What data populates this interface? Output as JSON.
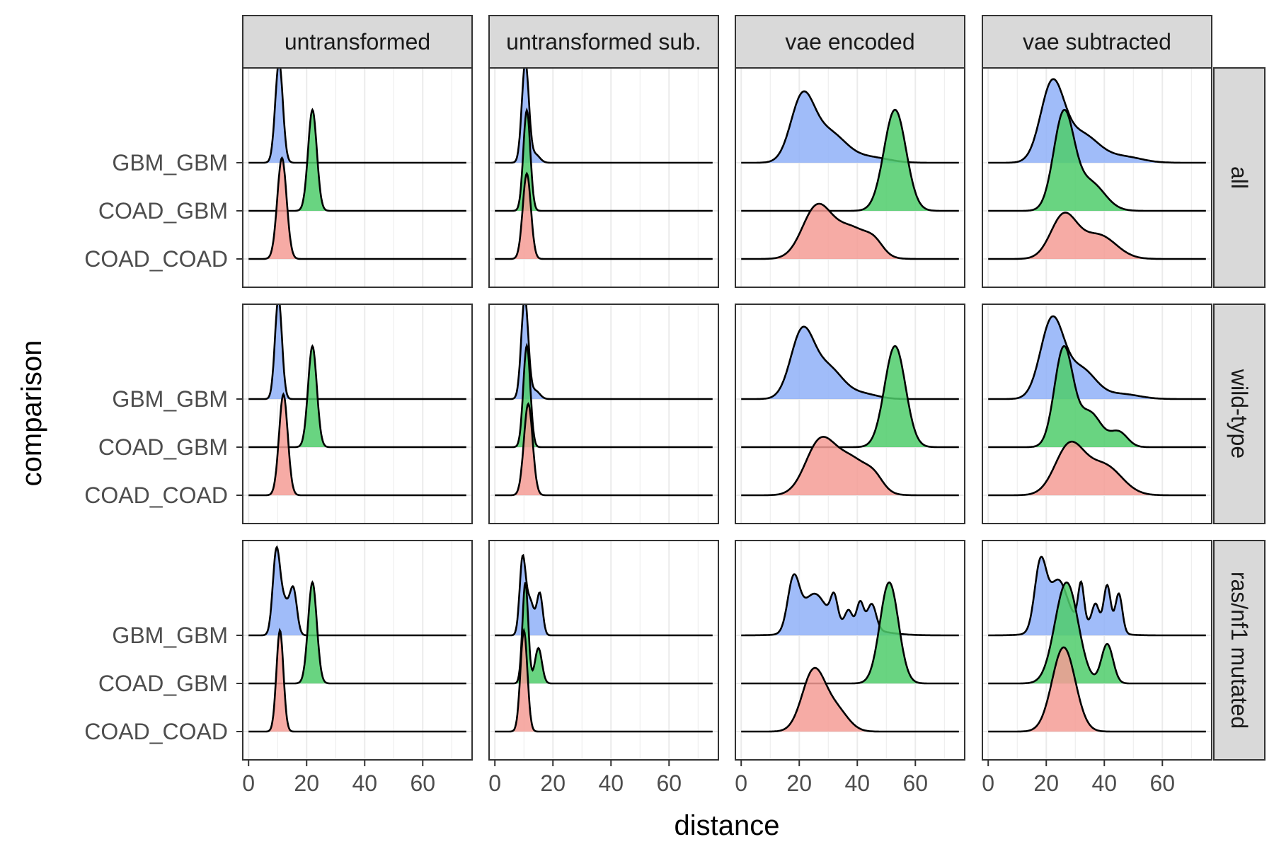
{
  "chart_data": {
    "type": "ridgeline",
    "xlabel": "distance",
    "ylabel": "comparison",
    "xlim": [
      -2,
      77
    ],
    "x_ticks": [
      0,
      20,
      40,
      60
    ],
    "x_tick_labels": [
      "0",
      "20",
      "40",
      "60"
    ],
    "grid": true,
    "columns": [
      "untransformed",
      "untransformed sub.",
      "vae encoded",
      "vae subtracted"
    ],
    "rows": [
      "all",
      "wild-type",
      "ras/nf1 mutated"
    ],
    "categories": [
      "GBM_GBM",
      "COAD_GBM",
      "COAD_COAD"
    ],
    "colors": {
      "GBM_GBM": "#8fb0f8",
      "COAD_GBM": "#4fcc6b",
      "COAD_COAD": "#f59c95"
    },
    "density_x_range": [
      0,
      75
    ],
    "density_scale": 2.1,
    "panels": [
      {
        "row": "all",
        "column": "untransformed",
        "series": [
          {
            "name": "GBM_GBM",
            "components": [
              [
                10.5,
                1.3,
                1.0
              ]
            ]
          },
          {
            "name": "COAD_GBM",
            "components": [
              [
                22,
                1.5,
                1.0
              ]
            ]
          },
          {
            "name": "COAD_COAD",
            "components": [
              [
                11.5,
                1.6,
                1.0
              ]
            ]
          }
        ]
      },
      {
        "row": "all",
        "column": "untransformed sub.",
        "series": [
          {
            "name": "GBM_GBM",
            "components": [
              [
                10.5,
                1.2,
                1.0
              ],
              [
                14,
                1.5,
                0.08
              ]
            ]
          },
          {
            "name": "COAD_GBM",
            "components": [
              [
                11,
                1.2,
                1.0
              ]
            ]
          },
          {
            "name": "COAD_COAD",
            "components": [
              [
                11,
                1.4,
                0.85
              ]
            ]
          }
        ]
      },
      {
        "row": "all",
        "column": "vae encoded",
        "series": [
          {
            "name": "GBM_GBM",
            "components": [
              [
                21,
                4,
                0.6
              ],
              [
                30,
                6,
                0.3
              ],
              [
                45,
                6,
                0.05
              ]
            ]
          },
          {
            "name": "COAD_GBM",
            "components": [
              [
                53,
                3.8,
                1.0
              ]
            ]
          },
          {
            "name": "COAD_COAD",
            "components": [
              [
                26,
                5,
                0.5
              ],
              [
                38,
                6,
                0.3
              ],
              [
                46,
                3,
                0.1
              ]
            ]
          }
        ]
      },
      {
        "row": "all",
        "column": "vae subtracted",
        "series": [
          {
            "name": "GBM_GBM",
            "components": [
              [
                22,
                4,
                0.8
              ],
              [
                32,
                6,
                0.3
              ],
              [
                47,
                6,
                0.06
              ]
            ]
          },
          {
            "name": "COAD_GBM",
            "components": [
              [
                26,
                3.5,
                1.0
              ],
              [
                35,
                5,
                0.3
              ]
            ]
          },
          {
            "name": "COAD_COAD",
            "components": [
              [
                26,
                4.5,
                0.45
              ],
              [
                38,
                6,
                0.25
              ]
            ]
          }
        ]
      },
      {
        "row": "wild-type",
        "column": "untransformed",
        "series": [
          {
            "name": "GBM_GBM",
            "components": [
              [
                10.3,
                1.2,
                1.0
              ]
            ]
          },
          {
            "name": "COAD_GBM",
            "components": [
              [
                22,
                1.5,
                1.0
              ]
            ]
          },
          {
            "name": "COAD_COAD",
            "components": [
              [
                12,
                1.5,
                1.0
              ]
            ]
          }
        ]
      },
      {
        "row": "wild-type",
        "column": "untransformed sub.",
        "series": [
          {
            "name": "GBM_GBM",
            "components": [
              [
                10.3,
                1.2,
                1.0
              ],
              [
                14,
                1.5,
                0.08
              ]
            ]
          },
          {
            "name": "COAD_GBM",
            "components": [
              [
                11,
                1.2,
                1.0
              ]
            ]
          },
          {
            "name": "COAD_COAD",
            "components": [
              [
                11.5,
                1.5,
                0.9
              ]
            ]
          }
        ]
      },
      {
        "row": "wild-type",
        "column": "vae encoded",
        "series": [
          {
            "name": "GBM_GBM",
            "components": [
              [
                21,
                4,
                0.65
              ],
              [
                30,
                5,
                0.3
              ],
              [
                42,
                5,
                0.05
              ]
            ]
          },
          {
            "name": "COAD_GBM",
            "components": [
              [
                53,
                3.6,
                1.0
              ]
            ]
          },
          {
            "name": "COAD_COAD",
            "components": [
              [
                27,
                5,
                0.5
              ],
              [
                38,
                6,
                0.35
              ],
              [
                46,
                3,
                0.1
              ]
            ]
          }
        ]
      },
      {
        "row": "wild-type",
        "column": "vae subtracted",
        "series": [
          {
            "name": "GBM_GBM",
            "components": [
              [
                22,
                4,
                0.8
              ],
              [
                32,
                5,
                0.3
              ],
              [
                46,
                6,
                0.05
              ]
            ]
          },
          {
            "name": "COAD_GBM",
            "components": [
              [
                26,
                3.2,
                1.0
              ],
              [
                35,
                4,
                0.35
              ],
              [
                45,
                3,
                0.15
              ]
            ]
          },
          {
            "name": "COAD_COAD",
            "components": [
              [
                28,
                5,
                0.5
              ],
              [
                40,
                6,
                0.3
              ]
            ]
          }
        ]
      },
      {
        "row": "ras/nf1 mutated",
        "column": "untransformed",
        "series": [
          {
            "name": "GBM_GBM",
            "components": [
              [
                9.5,
                1.2,
                0.7
              ],
              [
                12,
                2,
                0.35
              ],
              [
                15.5,
                1.2,
                0.4
              ]
            ]
          },
          {
            "name": "COAD_GBM",
            "components": [
              [
                22,
                1.5,
                1.0
              ]
            ]
          },
          {
            "name": "COAD_COAD",
            "components": [
              [
                10.8,
                1.2,
                1.0
              ]
            ]
          }
        ]
      },
      {
        "row": "ras/nf1 mutated",
        "column": "untransformed sub.",
        "series": [
          {
            "name": "GBM_GBM",
            "components": [
              [
                9.5,
                1.0,
                0.7
              ],
              [
                12,
                1.5,
                0.35
              ],
              [
                15.5,
                1.0,
                0.4
              ]
            ]
          },
          {
            "name": "COAD_GBM",
            "components": [
              [
                10.5,
                1.0,
                1.0
              ],
              [
                15,
                1.2,
                0.35
              ]
            ]
          },
          {
            "name": "COAD_COAD",
            "components": [
              [
                10,
                1.2,
                1.0
              ]
            ]
          }
        ]
      },
      {
        "row": "ras/nf1 mutated",
        "column": "vae encoded",
        "series": [
          {
            "name": "GBM_GBM",
            "components": [
              [
                18,
                2,
                0.5
              ],
              [
                25,
                4,
                0.35
              ],
              [
                32,
                1.2,
                0.25
              ],
              [
                37,
                1.2,
                0.15
              ],
              [
                41,
                1.2,
                0.25
              ],
              [
                45,
                1.5,
                0.25
              ],
              [
                35,
                10,
                0.1
              ]
            ]
          },
          {
            "name": "COAD_GBM",
            "components": [
              [
                51,
                3.2,
                1.0
              ]
            ]
          },
          {
            "name": "COAD_COAD",
            "components": [
              [
                25,
                4,
                0.6
              ],
              [
                33,
                4,
                0.2
              ]
            ]
          }
        ]
      },
      {
        "row": "ras/nf1 mutated",
        "column": "vae subtracted",
        "series": [
          {
            "name": "GBM_GBM",
            "components": [
              [
                18,
                2,
                0.6
              ],
              [
                24,
                3,
                0.4
              ],
              [
                32,
                1.0,
                0.35
              ],
              [
                37,
                1.2,
                0.2
              ],
              [
                41,
                1.2,
                0.4
              ],
              [
                45,
                1.2,
                0.35
              ],
              [
                30,
                8,
                0.12
              ]
            ]
          },
          {
            "name": "COAD_GBM",
            "components": [
              [
                27,
                4,
                0.9
              ],
              [
                41,
                2,
                0.35
              ]
            ]
          },
          {
            "name": "COAD_COAD",
            "components": [
              [
                26,
                4,
                0.75
              ]
            ]
          }
        ]
      }
    ]
  }
}
